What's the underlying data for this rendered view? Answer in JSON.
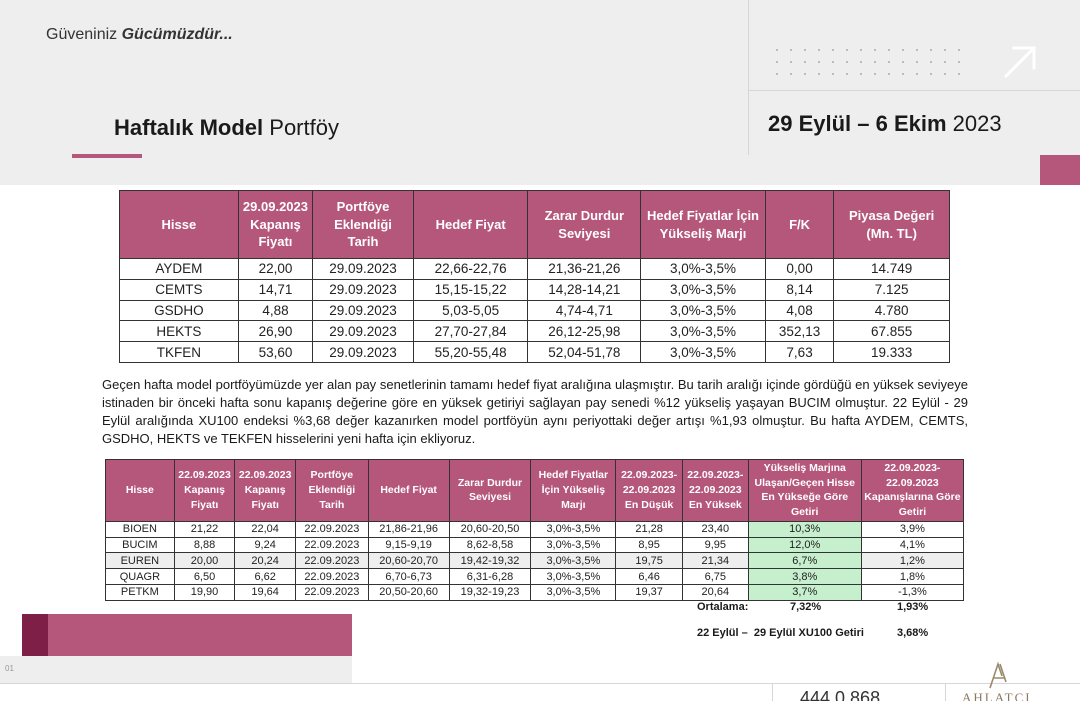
{
  "header": {
    "tagline_prefix": "Güveniniz",
    "tagline_bold": "Gücümüzdür...",
    "title_bold": "Haftalık Model",
    "title_rest": "Portföy",
    "date_bold": "29 Eylül – 6 Ekim",
    "date_year": "2023"
  },
  "table1": {
    "headers": [
      "Hisse",
      "29.09.2023 Kapanış Fiyatı",
      "Portföye Eklendiği Tarih",
      "Hedef Fiyat",
      "Zarar Durdur Seviyesi",
      "Hedef Fiyatlar İçin Yükseliş Marjı",
      "F/K",
      "Piyasa Değeri (Mn. TL)"
    ],
    "rows": [
      [
        "AYDEM",
        "22,00",
        "29.09.2023",
        "22,66-22,76",
        "21,36-21,26",
        "3,0%-3,5%",
        "0,00",
        "14.749"
      ],
      [
        "CEMTS",
        "14,71",
        "29.09.2023",
        "15,15-15,22",
        "14,28-14,21",
        "3,0%-3,5%",
        "8,14",
        "7.125"
      ],
      [
        "GSDHO",
        "4,88",
        "29.09.2023",
        "5,03-5,05",
        "4,74-4,71",
        "3,0%-3,5%",
        "4,08",
        "4.780"
      ],
      [
        "HEKTS",
        "26,90",
        "29.09.2023",
        "27,70-27,84",
        "26,12-25,98",
        "3,0%-3,5%",
        "352,13",
        "67.855"
      ],
      [
        "TKFEN",
        "53,60",
        "29.09.2023",
        "55,20-55,48",
        "52,04-51,78",
        "3,0%-3,5%",
        "7,63",
        "19.333"
      ]
    ]
  },
  "paragraph": "Geçen hafta model portföyümüzde yer alan pay senetlerinin tamamı hedef fiyat aralığına ulaşmıştır. Bu tarih aralığı içinde gördüğü en yüksek seviyeye istinaden bir önceki hafta sonu kapanış değerine göre en yüksek getiriyi sağlayan pay senedi %12 yükseliş yaşayan BUCIM olmuştur. 22 Eylül - 29 Eylül aralığında XU100 endeksi %3,68 değer kazanırken model portföyün aynı periyottaki değer artışı %1,93 olmuştur. Bu hafta AYDEM, CEMTS, GSDHO, HEKTS ve TEKFEN hisselerini yeni hafta için ekliyoruz.",
  "table2": {
    "headers": [
      "Hisse",
      "22.09.2023 Kapanış Fiyatı",
      "22.09.2023 Kapanış Fiyatı",
      "Portföye Eklendiği Tarih",
      "Hedef Fiyat",
      "Zarar Durdur Seviyesi",
      "Hedef Fiyatlar İçin Yükseliş Marjı",
      "22.09.2023- 22.09.2023 En Düşük",
      "22.09.2023- 22.09.2023 En Yüksek",
      "Yükseliş Marjına Ulaşan/Geçen Hisse En Yükseğe Göre Getiri",
      "22.09.2023- 22.09.2023 Kapanışlarına Göre Getiri"
    ],
    "rows": [
      [
        "BIOEN",
        "21,22",
        "22,04",
        "22.09.2023",
        "21,86-21,96",
        "20,60-20,50",
        "3,0%-3,5%",
        "21,28",
        "23,40",
        "10,3%",
        "3,9%"
      ],
      [
        "BUCIM",
        "8,88",
        "9,24",
        "22.09.2023",
        "9,15-9,19",
        "8,62-8,58",
        "3,0%-3,5%",
        "8,95",
        "9,95",
        "12,0%",
        "4,1%"
      ],
      [
        "EUREN",
        "20,00",
        "20,24",
        "22.09.2023",
        "20,60-20,70",
        "19,42-19,32",
        "3,0%-3,5%",
        "19,75",
        "21,34",
        "6,7%",
        "1,2%"
      ],
      [
        "QUAGR",
        "6,50",
        "6,62",
        "22.09.2023",
        "6,70-6,73",
        "6,31-6,28",
        "3,0%-3,5%",
        "6,46",
        "6,75",
        "3,8%",
        "1,8%"
      ],
      [
        "PETKM",
        "19,90",
        "19,64",
        "22.09.2023",
        "20,50-20,60",
        "19,32-19,23",
        "3,0%-3,5%",
        "19,37",
        "20,64",
        "3,7%",
        "-1,3%"
      ]
    ],
    "average_label": "Ortalama:",
    "average_high": "7,32%",
    "average_close": "1,93%",
    "xu100_label": "22 Eylül –  29 Eylül XU100 Getiri",
    "xu100_value": "3,68%"
  },
  "footer": {
    "page_number": "01",
    "bottom_number": "444 0 868",
    "logo_text": "AHLATCI"
  },
  "colors": {
    "accent": "#b5577a",
    "accent_dark": "#7d1f47",
    "highlight_green": "#c6efce",
    "header_bg": "#eeeeef"
  }
}
